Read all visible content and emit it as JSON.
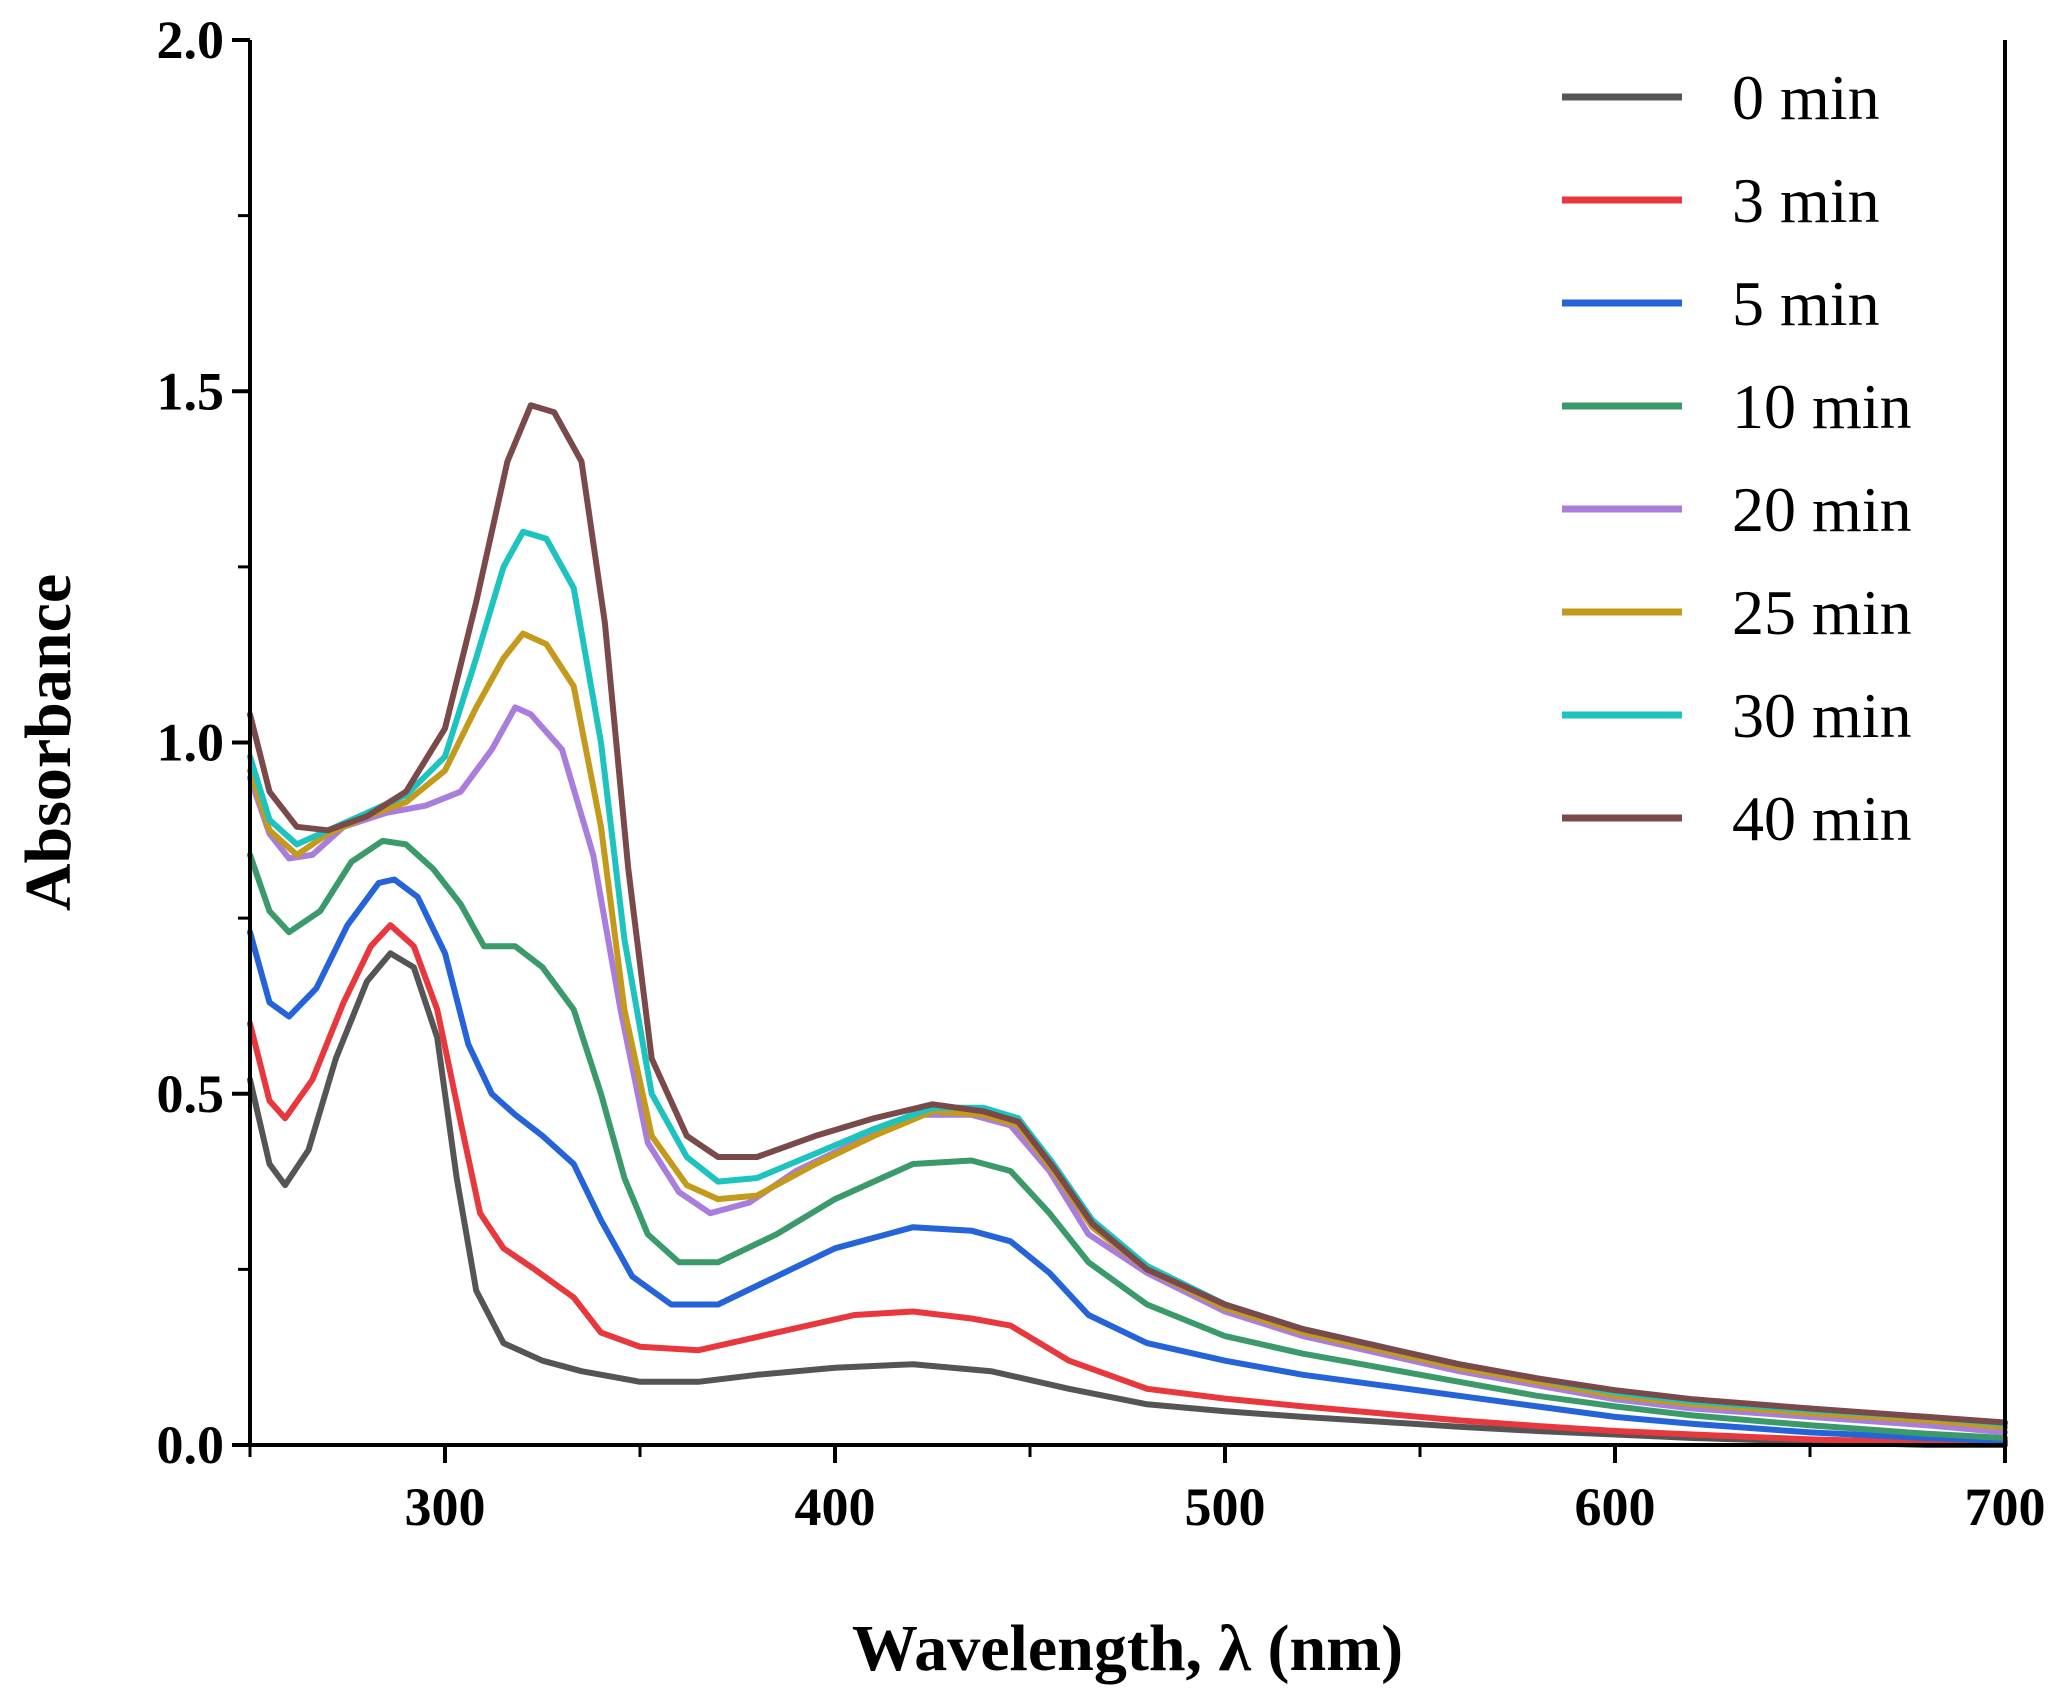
{
  "chart_data": {
    "type": "line",
    "title": "",
    "xlabel": "Wavelength, λ (nm)",
    "ylabel": "Absorbance",
    "xlim": [
      250,
      700
    ],
    "ylim": [
      0.0,
      2.0
    ],
    "xticks": [
      300,
      400,
      500,
      600,
      700
    ],
    "xtick_labels": [
      "300",
      "400",
      "500",
      "600",
      "700"
    ],
    "yticks": [
      0.0,
      0.5,
      1.0,
      1.5,
      2.0
    ],
    "ytick_labels": [
      "0.0",
      "0.5",
      "1.0",
      "1.5",
      "2.0"
    ],
    "grid": false,
    "legend_position": "top-right",
    "series": [
      {
        "name": "0 min",
        "color": "#555555",
        "points": [
          [
            250,
            0.52
          ],
          [
            255,
            0.4
          ],
          [
            259,
            0.37
          ],
          [
            265,
            0.42
          ],
          [
            272,
            0.55
          ],
          [
            280,
            0.66
          ],
          [
            286,
            0.7
          ],
          [
            292,
            0.68
          ],
          [
            298,
            0.58
          ],
          [
            303,
            0.38
          ],
          [
            308,
            0.22
          ],
          [
            315,
            0.145
          ],
          [
            325,
            0.12
          ],
          [
            335,
            0.105
          ],
          [
            350,
            0.09
          ],
          [
            365,
            0.09
          ],
          [
            380,
            0.1
          ],
          [
            400,
            0.11
          ],
          [
            420,
            0.115
          ],
          [
            440,
            0.105
          ],
          [
            460,
            0.08
          ],
          [
            480,
            0.058
          ],
          [
            500,
            0.048
          ],
          [
            520,
            0.04
          ],
          [
            540,
            0.033
          ],
          [
            560,
            0.026
          ],
          [
            580,
            0.02
          ],
          [
            600,
            0.015
          ],
          [
            620,
            0.01
          ],
          [
            650,
            0.005
          ],
          [
            680,
            0.0
          ],
          [
            700,
            0.0
          ]
        ]
      },
      {
        "name": "3 min",
        "color": "#e8383d",
        "points": [
          [
            250,
            0.6
          ],
          [
            255,
            0.49
          ],
          [
            259,
            0.465
          ],
          [
            266,
            0.52
          ],
          [
            274,
            0.63
          ],
          [
            281,
            0.71
          ],
          [
            286,
            0.74
          ],
          [
            292,
            0.71
          ],
          [
            298,
            0.62
          ],
          [
            304,
            0.46
          ],
          [
            309,
            0.33
          ],
          [
            315,
            0.28
          ],
          [
            323,
            0.25
          ],
          [
            333,
            0.21
          ],
          [
            340,
            0.16
          ],
          [
            350,
            0.14
          ],
          [
            365,
            0.135
          ],
          [
            385,
            0.16
          ],
          [
            405,
            0.185
          ],
          [
            420,
            0.19
          ],
          [
            435,
            0.18
          ],
          [
            445,
            0.17
          ],
          [
            460,
            0.12
          ],
          [
            480,
            0.08
          ],
          [
            500,
            0.066
          ],
          [
            520,
            0.055
          ],
          [
            540,
            0.045
          ],
          [
            560,
            0.035
          ],
          [
            580,
            0.027
          ],
          [
            600,
            0.02
          ],
          [
            620,
            0.015
          ],
          [
            650,
            0.008
          ],
          [
            680,
            0.004
          ],
          [
            700,
            0.003
          ]
        ]
      },
      {
        "name": "5 min",
        "color": "#2563d9",
        "points": [
          [
            250,
            0.73
          ],
          [
            255,
            0.63
          ],
          [
            260,
            0.61
          ],
          [
            267,
            0.65
          ],
          [
            275,
            0.74
          ],
          [
            283,
            0.8
          ],
          [
            287,
            0.805
          ],
          [
            293,
            0.78
          ],
          [
            300,
            0.7
          ],
          [
            306,
            0.57
          ],
          [
            312,
            0.5
          ],
          [
            318,
            0.47
          ],
          [
            325,
            0.44
          ],
          [
            333,
            0.4
          ],
          [
            340,
            0.32
          ],
          [
            348,
            0.24
          ],
          [
            358,
            0.2
          ],
          [
            370,
            0.2
          ],
          [
            385,
            0.24
          ],
          [
            400,
            0.28
          ],
          [
            420,
            0.31
          ],
          [
            435,
            0.305
          ],
          [
            445,
            0.29
          ],
          [
            455,
            0.245
          ],
          [
            465,
            0.185
          ],
          [
            480,
            0.145
          ],
          [
            500,
            0.12
          ],
          [
            520,
            0.1
          ],
          [
            540,
            0.085
          ],
          [
            560,
            0.07
          ],
          [
            580,
            0.055
          ],
          [
            600,
            0.04
          ],
          [
            620,
            0.03
          ],
          [
            650,
            0.018
          ],
          [
            680,
            0.01
          ],
          [
            700,
            0.006
          ]
        ]
      },
      {
        "name": "10 min",
        "color": "#3a9a6a",
        "points": [
          [
            250,
            0.84
          ],
          [
            255,
            0.76
          ],
          [
            260,
            0.73
          ],
          [
            268,
            0.76
          ],
          [
            276,
            0.83
          ],
          [
            284,
            0.86
          ],
          [
            290,
            0.855
          ],
          [
            297,
            0.82
          ],
          [
            304,
            0.77
          ],
          [
            310,
            0.71
          ],
          [
            318,
            0.71
          ],
          [
            325,
            0.68
          ],
          [
            333,
            0.62
          ],
          [
            340,
            0.5
          ],
          [
            346,
            0.38
          ],
          [
            352,
            0.3
          ],
          [
            360,
            0.26
          ],
          [
            370,
            0.26
          ],
          [
            385,
            0.3
          ],
          [
            400,
            0.35
          ],
          [
            420,
            0.4
          ],
          [
            435,
            0.405
          ],
          [
            445,
            0.39
          ],
          [
            455,
            0.33
          ],
          [
            465,
            0.26
          ],
          [
            480,
            0.2
          ],
          [
            500,
            0.155
          ],
          [
            520,
            0.13
          ],
          [
            540,
            0.11
          ],
          [
            560,
            0.09
          ],
          [
            580,
            0.07
          ],
          [
            600,
            0.055
          ],
          [
            620,
            0.042
          ],
          [
            650,
            0.028
          ],
          [
            680,
            0.016
          ],
          [
            700,
            0.01
          ]
        ]
      },
      {
        "name": "20 min",
        "color": "#a87ddb",
        "points": [
          [
            250,
            0.95
          ],
          [
            255,
            0.87
          ],
          [
            260,
            0.835
          ],
          [
            266,
            0.84
          ],
          [
            274,
            0.88
          ],
          [
            285,
            0.9
          ],
          [
            295,
            0.91
          ],
          [
            304,
            0.93
          ],
          [
            312,
            0.99
          ],
          [
            318,
            1.05
          ],
          [
            322,
            1.04
          ],
          [
            330,
            0.99
          ],
          [
            338,
            0.84
          ],
          [
            345,
            0.62
          ],
          [
            352,
            0.43
          ],
          [
            360,
            0.36
          ],
          [
            368,
            0.33
          ],
          [
            378,
            0.345
          ],
          [
            390,
            0.39
          ],
          [
            405,
            0.43
          ],
          [
            420,
            0.47
          ],
          [
            435,
            0.47
          ],
          [
            445,
            0.455
          ],
          [
            455,
            0.39
          ],
          [
            465,
            0.3
          ],
          [
            480,
            0.245
          ],
          [
            500,
            0.19
          ],
          [
            520,
            0.155
          ],
          [
            540,
            0.13
          ],
          [
            560,
            0.105
          ],
          [
            580,
            0.085
          ],
          [
            600,
            0.065
          ],
          [
            620,
            0.052
          ],
          [
            650,
            0.04
          ],
          [
            680,
            0.028
          ],
          [
            700,
            0.018
          ]
        ]
      },
      {
        "name": "25 min",
        "color": "#c39a1c",
        "points": [
          [
            250,
            0.96
          ],
          [
            255,
            0.875
          ],
          [
            262,
            0.84
          ],
          [
            270,
            0.87
          ],
          [
            280,
            0.895
          ],
          [
            290,
            0.915
          ],
          [
            300,
            0.96
          ],
          [
            308,
            1.05
          ],
          [
            315,
            1.12
          ],
          [
            320,
            1.155
          ],
          [
            326,
            1.14
          ],
          [
            333,
            1.08
          ],
          [
            340,
            0.88
          ],
          [
            346,
            0.62
          ],
          [
            353,
            0.44
          ],
          [
            362,
            0.37
          ],
          [
            370,
            0.35
          ],
          [
            380,
            0.355
          ],
          [
            395,
            0.4
          ],
          [
            410,
            0.44
          ],
          [
            425,
            0.475
          ],
          [
            438,
            0.47
          ],
          [
            447,
            0.455
          ],
          [
            456,
            0.39
          ],
          [
            466,
            0.31
          ],
          [
            480,
            0.25
          ],
          [
            500,
            0.195
          ],
          [
            520,
            0.16
          ],
          [
            540,
            0.135
          ],
          [
            560,
            0.11
          ],
          [
            580,
            0.09
          ],
          [
            600,
            0.07
          ],
          [
            620,
            0.058
          ],
          [
            650,
            0.045
          ],
          [
            680,
            0.035
          ],
          [
            700,
            0.025
          ]
        ]
      },
      {
        "name": "30 min",
        "color": "#1cc3bf",
        "points": [
          [
            250,
            0.98
          ],
          [
            255,
            0.89
          ],
          [
            262,
            0.855
          ],
          [
            270,
            0.875
          ],
          [
            280,
            0.9
          ],
          [
            290,
            0.925
          ],
          [
            300,
            0.98
          ],
          [
            308,
            1.12
          ],
          [
            315,
            1.25
          ],
          [
            320,
            1.3
          ],
          [
            326,
            1.29
          ],
          [
            333,
            1.22
          ],
          [
            340,
            1.0
          ],
          [
            346,
            0.72
          ],
          [
            353,
            0.5
          ],
          [
            362,
            0.41
          ],
          [
            370,
            0.375
          ],
          [
            380,
            0.38
          ],
          [
            395,
            0.415
          ],
          [
            410,
            0.45
          ],
          [
            425,
            0.48
          ],
          [
            438,
            0.48
          ],
          [
            447,
            0.465
          ],
          [
            456,
            0.4
          ],
          [
            466,
            0.32
          ],
          [
            480,
            0.255
          ],
          [
            500,
            0.2
          ],
          [
            520,
            0.165
          ],
          [
            540,
            0.14
          ],
          [
            560,
            0.115
          ],
          [
            580,
            0.095
          ],
          [
            600,
            0.075
          ],
          [
            620,
            0.062
          ],
          [
            650,
            0.05
          ],
          [
            680,
            0.04
          ],
          [
            700,
            0.03
          ]
        ]
      },
      {
        "name": "40 min",
        "color": "#7a4a4a",
        "points": [
          [
            250,
            1.04
          ],
          [
            255,
            0.93
          ],
          [
            262,
            0.88
          ],
          [
            270,
            0.875
          ],
          [
            280,
            0.895
          ],
          [
            290,
            0.93
          ],
          [
            300,
            1.02
          ],
          [
            308,
            1.2
          ],
          [
            316,
            1.4
          ],
          [
            322,
            1.48
          ],
          [
            328,
            1.47
          ],
          [
            335,
            1.4
          ],
          [
            341,
            1.17
          ],
          [
            347,
            0.82
          ],
          [
            353,
            0.55
          ],
          [
            362,
            0.44
          ],
          [
            370,
            0.41
          ],
          [
            380,
            0.41
          ],
          [
            395,
            0.44
          ],
          [
            410,
            0.465
          ],
          [
            425,
            0.485
          ],
          [
            438,
            0.475
          ],
          [
            447,
            0.46
          ],
          [
            456,
            0.395
          ],
          [
            466,
            0.315
          ],
          [
            480,
            0.25
          ],
          [
            500,
            0.2
          ],
          [
            520,
            0.165
          ],
          [
            540,
            0.14
          ],
          [
            560,
            0.115
          ],
          [
            580,
            0.095
          ],
          [
            600,
            0.078
          ],
          [
            620,
            0.065
          ],
          [
            650,
            0.052
          ],
          [
            680,
            0.04
          ],
          [
            700,
            0.032
          ]
        ]
      }
    ]
  }
}
